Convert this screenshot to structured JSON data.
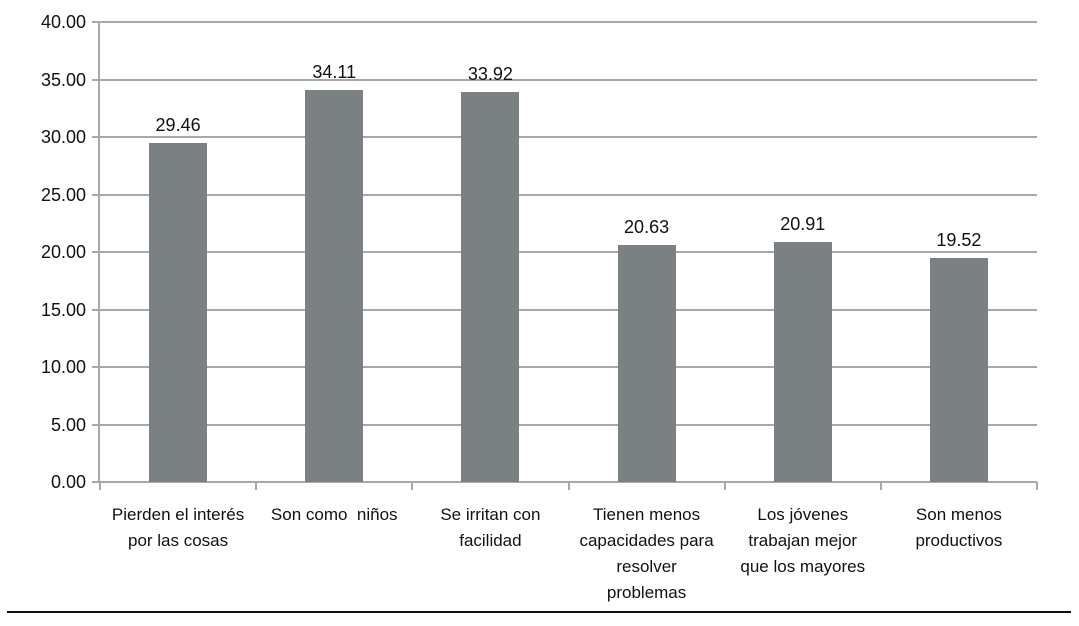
{
  "chart_data": {
    "type": "bar",
    "title": "",
    "xlabel": "",
    "ylabel": "",
    "categories": [
      "Pierden el interés por las cosas",
      "Son como  niños",
      "Se irritan con facilidad",
      "Tienen menos capacidades para resolver problemas",
      "Los jóvenes trabajan mejor que los mayores",
      "Son menos productivos"
    ],
    "values": [
      29.46,
      34.11,
      33.92,
      20.63,
      20.91,
      19.52
    ],
    "value_labels": [
      "29.46",
      "34.11",
      "33.92",
      "20.63",
      "20.91",
      "19.52"
    ],
    "ylim": [
      0,
      40
    ],
    "ytick_labels": [
      "40.00",
      "35.00",
      "30.00",
      "25.00",
      "20.00",
      "15.00",
      "10.00",
      "5.00",
      "0.00"
    ],
    "grid": true,
    "legend_position": "none",
    "bar_color": "#7b8082",
    "gridline_color": "#a6a9a9",
    "axis_color": "#a6a9a9",
    "text_color": "#111111"
  }
}
